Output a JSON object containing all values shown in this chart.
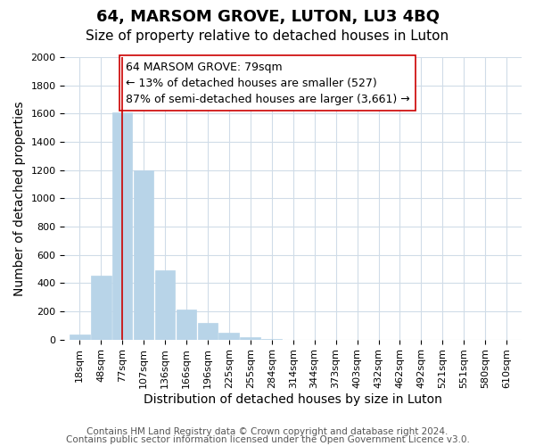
{
  "title": "64, MARSOM GROVE, LUTON, LU3 4BQ",
  "subtitle": "Size of property relative to detached houses in Luton",
  "xlabel": "Distribution of detached houses by size in Luton",
  "ylabel": "Number of detached properties",
  "bar_color": "#b8d4e8",
  "bar_edge_color": "#b8d4e8",
  "bin_labels": [
    "18sqm",
    "48sqm",
    "77sqm",
    "107sqm",
    "136sqm",
    "166sqm",
    "196sqm",
    "225sqm",
    "255sqm",
    "284sqm",
    "314sqm",
    "344sqm",
    "373sqm",
    "403sqm",
    "432sqm",
    "462sqm",
    "492sqm",
    "521sqm",
    "551sqm",
    "580sqm",
    "610sqm"
  ],
  "bar_heights": [
    35,
    450,
    1610,
    1200,
    490,
    210,
    115,
    45,
    15,
    5,
    0,
    0,
    0,
    0,
    0,
    0,
    0,
    0,
    0,
    0,
    0
  ],
  "ylim": [
    0,
    2000
  ],
  "yticks": [
    0,
    200,
    400,
    600,
    800,
    1000,
    1200,
    1400,
    1600,
    1800,
    2000
  ],
  "property_line_x": 2,
  "property_line_color": "#cc0000",
  "annotation_line1": "64 MARSOM GROVE: 79sqm",
  "annotation_line2": "← 13% of detached houses are smaller (527)",
  "annotation_line3": "87% of semi-detached houses are larger (3,661) →",
  "annotation_box_color": "#ffffff",
  "annotation_box_edge_color": "#cc0000",
  "footer_line1": "Contains HM Land Registry data © Crown copyright and database right 2024.",
  "footer_line2": "Contains public sector information licensed under the Open Government Licence v3.0.",
  "bg_color": "#ffffff",
  "grid_color": "#d0dce8",
  "title_fontsize": 13,
  "subtitle_fontsize": 11,
  "axis_label_fontsize": 10,
  "tick_fontsize": 8,
  "annotation_fontsize": 9,
  "footer_fontsize": 7.5
}
